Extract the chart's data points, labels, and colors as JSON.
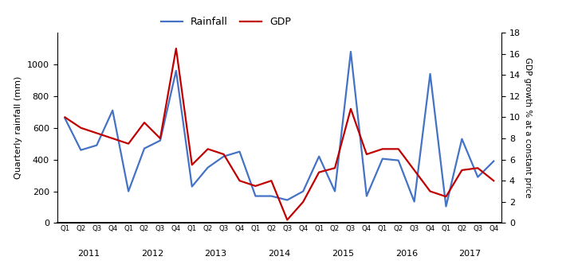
{
  "quarters": [
    "Q1",
    "Q2",
    "Q3",
    "Q4",
    "Q1",
    "Q2",
    "Q3",
    "Q4",
    "Q1",
    "Q2",
    "Q3",
    "Q4",
    "Q1",
    "Q2",
    "Q3",
    "Q4",
    "Q1",
    "Q2",
    "Q3",
    "Q4",
    "Q1",
    "Q2",
    "Q3",
    "Q4",
    "Q1",
    "Q2",
    "Q3",
    "Q4"
  ],
  "year_labels": [
    "2011",
    "2012",
    "2013",
    "2014",
    "2015",
    "2016",
    "2017"
  ],
  "year_tick_positions": [
    1.5,
    5.5,
    9.5,
    13.5,
    17.5,
    21.5,
    25.5
  ],
  "rainfall": [
    660,
    460,
    490,
    710,
    200,
    470,
    520,
    960,
    230,
    350,
    420,
    450,
    170,
    170,
    145,
    200,
    420,
    200,
    1080,
    170,
    405,
    395,
    135,
    940,
    105,
    530,
    290,
    390
  ],
  "gdp": [
    10,
    9,
    8.5,
    8,
    7.5,
    9.5,
    8,
    16.5,
    5.5,
    7,
    6.5,
    4,
    3.5,
    4,
    0.3,
    2,
    4.8,
    5.2,
    10.8,
    6.5,
    7,
    7,
    5,
    3,
    2.5,
    5,
    5.2,
    4
  ],
  "rainfall_color": "#4472C4",
  "gdp_color": "#C00000",
  "ylabel_left": "Quarterly rainfall (mm)",
  "ylabel_right": "GDP growth % at a constant price",
  "ylim_left": [
    0,
    1200
  ],
  "ylim_right": [
    0,
    18
  ],
  "yticks_left": [
    0,
    200,
    400,
    600,
    800,
    1000
  ],
  "yticks_right": [
    0,
    2,
    4,
    6,
    8,
    10,
    12,
    14,
    16,
    18
  ],
  "legend_rainfall": "Rainfall",
  "legend_gdp": "GDP",
  "line_width": 1.6,
  "bg_color": "#FFFFFF"
}
